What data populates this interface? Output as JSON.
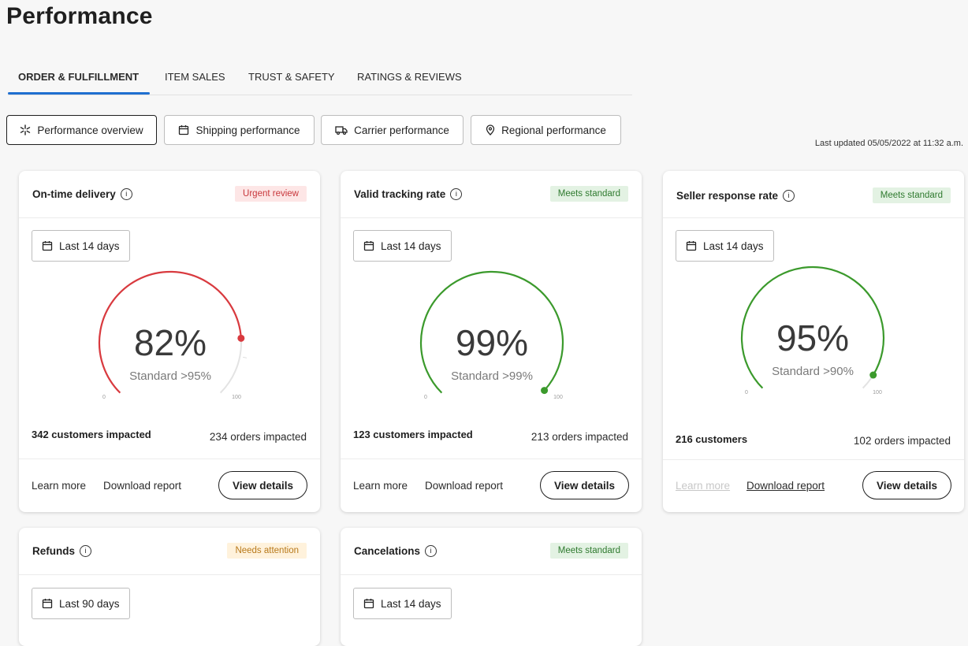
{
  "page": {
    "title": "Performance"
  },
  "tabs": [
    {
      "label": "ORDER & FULFILLMENT",
      "active": true
    },
    {
      "label": "ITEM SALES",
      "active": false
    },
    {
      "label": "TRUST & SAFETY",
      "active": false
    },
    {
      "label": "RATINGS & REVIEWS",
      "active": false
    }
  ],
  "subtabs": [
    {
      "label": "Performance overview",
      "icon": "sparkle-icon",
      "active": true
    },
    {
      "label": "Shipping performance",
      "icon": "calendar-icon",
      "active": false
    },
    {
      "label": "Carrier performance",
      "icon": "truck-icon",
      "active": false
    },
    {
      "label": "Regional performance",
      "icon": "location-pin-icon",
      "active": false
    }
  ],
  "last_updated": "Last updated 05/05/2022 at 11:32 a.m.",
  "colors": {
    "accent": "#1f6fd0",
    "red": "#d93a3f",
    "green": "#3b9a2c",
    "amber": "#b8791a"
  },
  "cards": [
    {
      "title": "On-time delivery",
      "badge": "Urgent review",
      "badge_type": "urgent",
      "date_range": "Last 14 days",
      "value": "82%",
      "value_fraction": 0.82,
      "standard": "Standard >95%",
      "axis_min": "0",
      "axis_max": "100",
      "color": "#d93a3f",
      "customers": "342 customers impacted",
      "orders": "234 orders impacted",
      "learn_more": "Learn more",
      "download": "Download report",
      "view": "View details"
    },
    {
      "title": "Valid tracking rate",
      "badge": "Meets standard",
      "badge_type": "good",
      "date_range": "Last 14 days",
      "value": "99%",
      "value_fraction": 0.99,
      "standard": "Standard >99%",
      "axis_min": "0",
      "axis_max": "100",
      "color": "#3b9a2c",
      "customers": "123 customers impacted",
      "orders": "213 orders impacted",
      "learn_more": "Learn more",
      "download": "Download report",
      "view": "View details"
    },
    {
      "title": "Seller response rate",
      "badge": "Meets standard",
      "badge_type": "good",
      "date_range": "Last 14 days",
      "value": "95%",
      "value_fraction": 0.95,
      "standard": "Standard >90%",
      "axis_min": "0",
      "axis_max": "100",
      "color": "#3b9a2c",
      "customers": "216 customers",
      "orders": "102 orders impacted",
      "learn_more": "Learn more",
      "download": "Download report",
      "view": "View details"
    },
    {
      "title": "Refunds",
      "badge": "Needs attention",
      "badge_type": "warn",
      "date_range": "Last 90 days"
    },
    {
      "title": "Cancelations",
      "badge": "Meets standard",
      "badge_type": "good",
      "date_range": "Last 14 days"
    }
  ]
}
